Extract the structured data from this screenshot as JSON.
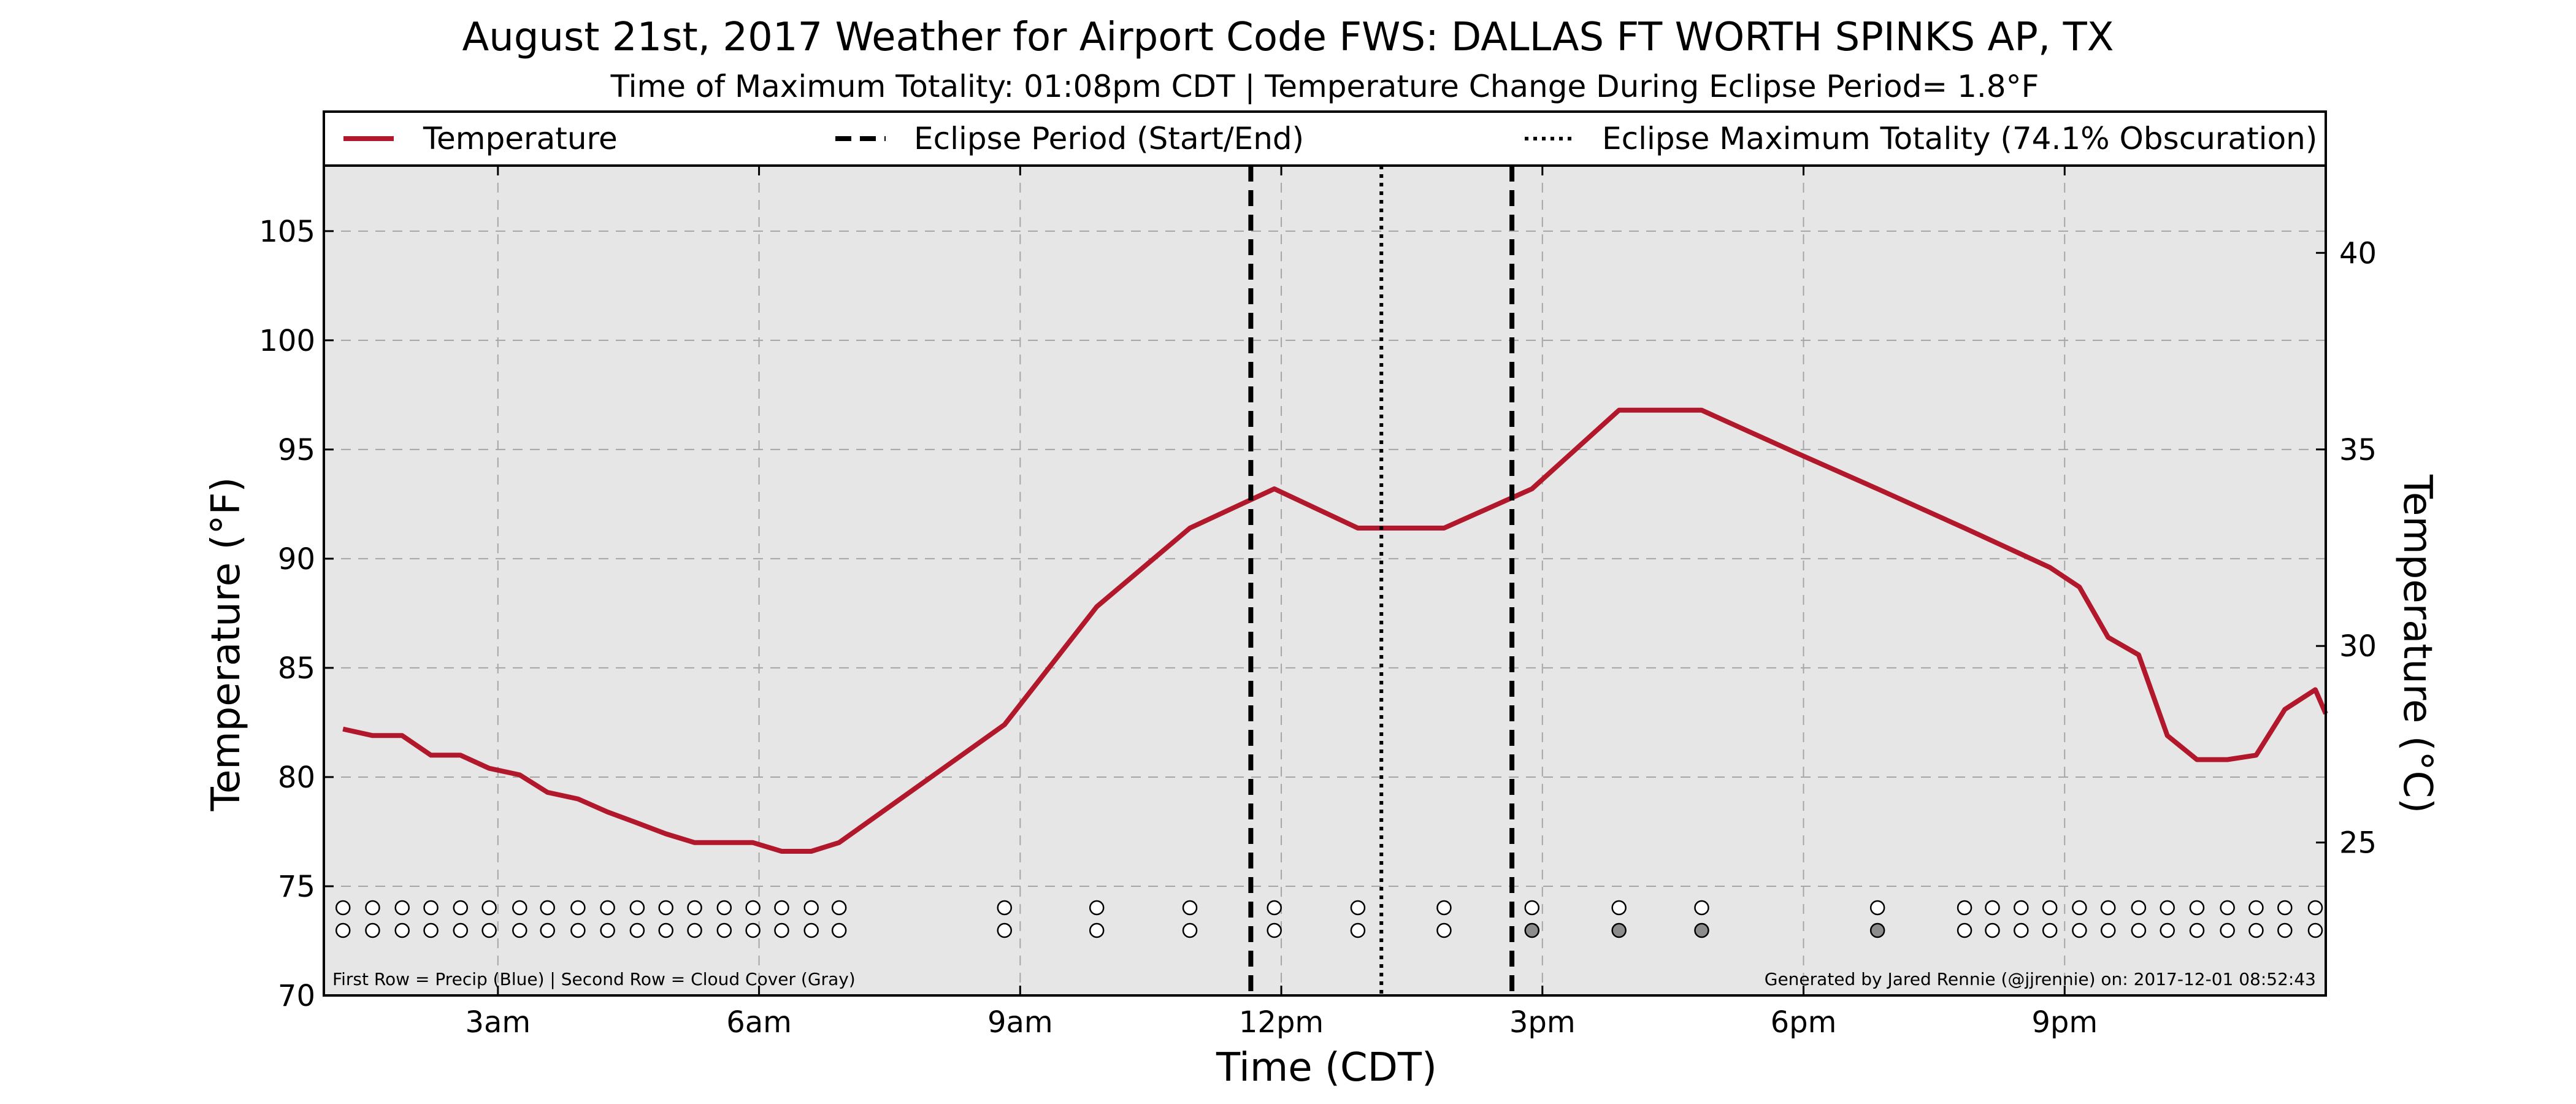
{
  "chart_data": {
    "type": "line",
    "title": "August 21st, 2017 Weather for Airport Code FWS: DALLAS FT WORTH SPINKS AP, TX",
    "subtitle": "Time of Maximum Totality: 01:08pm CDT | Temperature Change During Eclipse Period= 1.8°F",
    "xlabel": "Time (CDT)",
    "ylabel": "Temperature (°F)",
    "y2label": "Temperature (°C)",
    "xlim": [
      1.0,
      24.0
    ],
    "ylim": [
      70,
      108
    ],
    "y2lim": [
      21.11,
      42.22
    ],
    "x_ticks": [
      {
        "value": 3,
        "label": "3am"
      },
      {
        "value": 6,
        "label": "6am"
      },
      {
        "value": 9,
        "label": "9am"
      },
      {
        "value": 12,
        "label": "12pm"
      },
      {
        "value": 15,
        "label": "3pm"
      },
      {
        "value": 18,
        "label": "6pm"
      },
      {
        "value": 21,
        "label": "9pm"
      }
    ],
    "y_ticks": [
      70,
      75,
      80,
      85,
      90,
      95,
      100,
      105
    ],
    "y2_ticks": [
      25,
      30,
      35,
      40
    ],
    "grid": true,
    "legend_placement": "top",
    "legend": [
      {
        "label": "Temperature",
        "style": "solid"
      },
      {
        "label": "Eclipse Period (Start/End)",
        "style": "dashed"
      },
      {
        "label": "Eclipse Maximum Totality (74.1% Obscuration)",
        "style": "dotted"
      }
    ],
    "series": [
      {
        "name": "Temperature",
        "color": "#b2182b",
        "x": [
          1.22,
          1.56,
          1.9,
          2.23,
          2.57,
          2.9,
          3.25,
          3.57,
          3.92,
          4.26,
          4.6,
          4.93,
          5.26,
          5.6,
          5.93,
          6.26,
          6.6,
          6.92,
          8.82,
          9.88,
          10.95,
          11.92,
          12.88,
          13.87,
          14.88,
          15.88,
          16.83,
          17.83,
          18.85,
          19.85,
          20.83,
          21.17,
          21.5,
          21.85,
          22.18,
          22.52,
          22.87,
          23.2,
          23.53,
          23.88,
          24.0
        ],
        "y": [
          82.2,
          81.9,
          81.9,
          81.0,
          81.0,
          80.4,
          80.1,
          79.3,
          79.0,
          78.4,
          77.9,
          77.4,
          77.0,
          77.0,
          77.0,
          76.6,
          76.6,
          77.0,
          82.4,
          87.8,
          91.4,
          93.2,
          91.4,
          91.4,
          93.2,
          96.8,
          96.8,
          95.0,
          93.2,
          91.4,
          89.6,
          88.7,
          86.4,
          85.6,
          81.9,
          80.8,
          80.8,
          81.0,
          83.1,
          84.0,
          82.9
        ]
      }
    ],
    "eclipse_start": 11.65,
    "eclipse_end": 14.65,
    "eclipse_max": 13.15,
    "observation_rows": {
      "row1": "Precip",
      "row2": "Cloud Cover",
      "x": [
        1.22,
        1.56,
        1.9,
        2.23,
        2.57,
        2.9,
        3.25,
        3.57,
        3.92,
        4.26,
        4.6,
        4.93,
        5.26,
        5.6,
        5.93,
        6.26,
        6.6,
        6.92,
        8.82,
        9.88,
        10.95,
        11.92,
        12.88,
        13.87,
        14.88,
        15.88,
        16.83,
        18.85,
        19.85,
        20.17,
        20.5,
        20.83,
        21.17,
        21.5,
        21.85,
        22.18,
        22.52,
        22.87,
        23.2,
        23.53,
        23.88
      ],
      "cloud_gray_at": [
        14.88,
        15.88,
        16.83,
        18.85
      ]
    },
    "footnote_left": "First Row = Precip (Blue) | Second Row = Cloud Cover (Gray)",
    "footnote_right": "Generated by Jared Rennie (@jjrennie) on: 2017-12-01 08:52:43"
  }
}
